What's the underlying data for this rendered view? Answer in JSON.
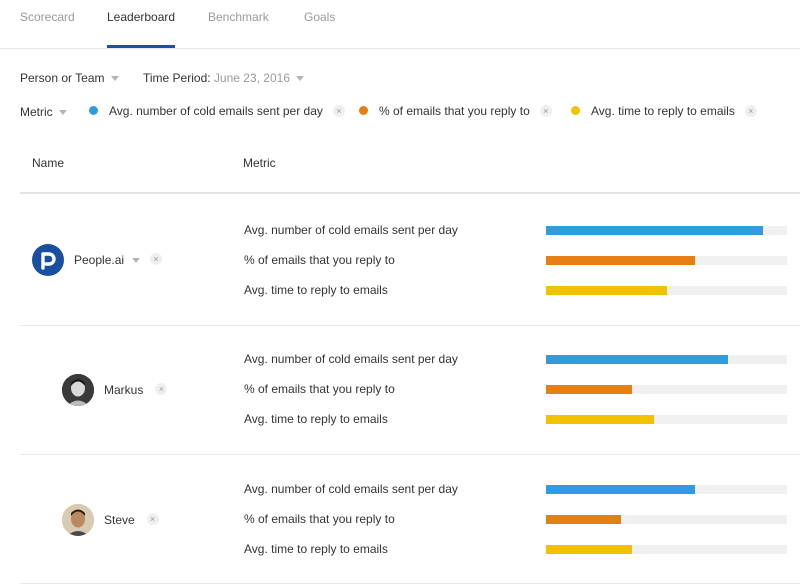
{
  "tabs": [
    "Scorecard",
    "Leaderboard",
    "Benchmark",
    "Goals"
  ],
  "active_tab": "Leaderboard",
  "filters": {
    "person_or_team": "Person or Team",
    "time_period_label": "Time Period:",
    "time_period_value": "June 23, 2016",
    "metric_label": "Metric"
  },
  "metric_chips": [
    {
      "label": "Avg. number of cold emails sent per day",
      "color": "#2f9be0"
    },
    {
      "label": "% of emails that you reply to",
      "color": "#e57e13"
    },
    {
      "label": "Avg. time to reply to emails",
      "color": "#f2c200"
    }
  ],
  "columns": {
    "name": "Name",
    "metric": "Metric"
  },
  "remove_glyph": "×",
  "rows": [
    {
      "name": "People.ai",
      "metrics": [
        {
          "label": "Avg. number of cold emails sent per day",
          "value": 0.9
        },
        {
          "label": "% of emails that you reply to",
          "value": 0.62
        },
        {
          "label": "Avg. time to reply to emails",
          "value": 0.5
        }
      ]
    },
    {
      "name": "Markus",
      "metrics": [
        {
          "label": "Avg. number of cold emails sent per day",
          "value": 0.755
        },
        {
          "label": "% of emails that you reply to",
          "value": 0.355
        },
        {
          "label": "Avg. time to reply to emails",
          "value": 0.45
        }
      ]
    },
    {
      "name": "Steve",
      "metrics": [
        {
          "label": "Avg. number of cold emails sent per day",
          "value": 0.62
        },
        {
          "label": "% of emails that you reply to",
          "value": 0.31
        },
        {
          "label": "Avg. time to reply to emails",
          "value": 0.355
        }
      ]
    }
  ],
  "bar_colors": [
    "#2f9be0",
    "#e57e13",
    "#f2c200"
  ]
}
